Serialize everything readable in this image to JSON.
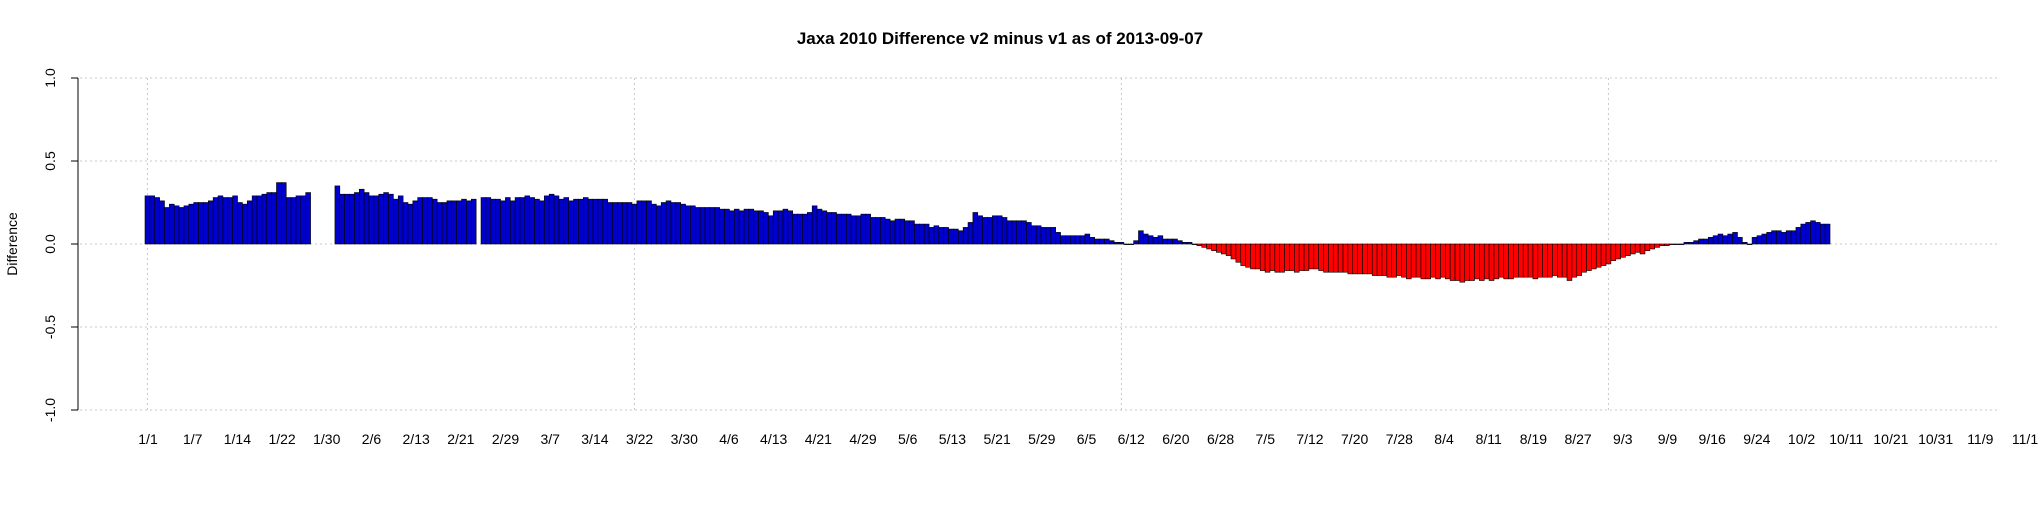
{
  "chart_data": {
    "type": "bar",
    "title": "Jaxa 2010 Difference v2 minus v1 as of 2013-09-07",
    "xlabel": "",
    "ylabel": "Difference",
    "ylim": [
      -1.0,
      1.0
    ],
    "y_ticks": [
      1.0,
      0.5,
      0.0,
      -0.5,
      -1.0
    ],
    "y_tick_labels": [
      "1.0",
      "0.5",
      "0.0",
      "-0.5",
      "-1.0"
    ],
    "x_tick_labels": [
      "1/1",
      "1/7",
      "1/14",
      "1/22",
      "1/30",
      "2/6",
      "2/13",
      "2/21",
      "2/29",
      "3/7",
      "3/14",
      "3/22",
      "3/30",
      "4/6",
      "4/13",
      "4/21",
      "4/29",
      "5/6",
      "5/13",
      "5/21",
      "5/29",
      "6/5",
      "6/12",
      "6/20",
      "6/28",
      "7/5",
      "7/12",
      "7/20",
      "7/28",
      "8/4",
      "8/11",
      "8/19",
      "8/27",
      "9/3",
      "9/9",
      "9/16",
      "9/24",
      "10/2",
      "10/11",
      "10/21",
      "10/31",
      "11/9",
      "11/1"
    ],
    "vertical_gridlines_at_days": [
      0,
      100,
      200,
      300
    ],
    "grid": true,
    "positive_color": "#0000cd",
    "negative_color": "#ff0000",
    "x_unit": "day of 2010 (0 = 1/1)",
    "missing_days": [
      34,
      35,
      36,
      37,
      38,
      68
    ],
    "day_values": [
      0.29,
      0.29,
      0.28,
      0.26,
      0.22,
      0.24,
      0.23,
      0.22,
      0.23,
      0.24,
      0.25,
      0.25,
      0.25,
      0.26,
      0.28,
      0.29,
      0.28,
      0.28,
      0.29,
      0.25,
      0.24,
      0.26,
      0.29,
      0.29,
      0.3,
      0.31,
      0.31,
      0.37,
      0.37,
      0.28,
      0.28,
      0.29,
      0.29,
      0.31,
      null,
      null,
      null,
      null,
      null,
      0.35,
      0.3,
      0.3,
      0.3,
      0.31,
      0.33,
      0.31,
      0.29,
      0.29,
      0.3,
      0.31,
      0.3,
      0.27,
      0.29,
      0.25,
      0.24,
      0.26,
      0.28,
      0.28,
      0.28,
      0.27,
      0.25,
      0.25,
      0.26,
      0.26,
      0.26,
      0.27,
      0.26,
      0.27,
      null,
      0.28,
      0.28,
      0.27,
      0.27,
      0.26,
      0.28,
      0.26,
      0.28,
      0.28,
      0.29,
      0.28,
      0.27,
      0.26,
      0.29,
      0.3,
      0.29,
      0.27,
      0.28,
      0.26,
      0.27,
      0.27,
      0.28,
      0.27,
      0.27,
      0.27,
      0.27,
      0.25,
      0.25,
      0.25,
      0.25,
      0.25,
      0.24,
      0.26,
      0.26,
      0.26,
      0.24,
      0.23,
      0.25,
      0.26,
      0.25,
      0.25,
      0.24,
      0.23,
      0.23,
      0.22,
      0.22,
      0.22,
      0.22,
      0.22,
      0.21,
      0.21,
      0.2,
      0.21,
      0.2,
      0.21,
      0.21,
      0.2,
      0.2,
      0.19,
      0.17,
      0.2,
      0.2,
      0.21,
      0.2,
      0.18,
      0.18,
      0.18,
      0.19,
      0.23,
      0.21,
      0.2,
      0.19,
      0.19,
      0.18,
      0.18,
      0.18,
      0.17,
      0.17,
      0.18,
      0.18,
      0.16,
      0.16,
      0.16,
      0.15,
      0.14,
      0.15,
      0.15,
      0.14,
      0.14,
      0.12,
      0.12,
      0.12,
      0.1,
      0.11,
      0.1,
      0.1,
      0.09,
      0.09,
      0.08,
      0.1,
      0.13,
      0.19,
      0.17,
      0.16,
      0.16,
      0.17,
      0.17,
      0.16,
      0.14,
      0.14,
      0.14,
      0.14,
      0.13,
      0.11,
      0.11,
      0.1,
      0.1,
      0.1,
      0.07,
      0.05,
      0.05,
      0.05,
      0.05,
      0.05,
      0.06,
      0.04,
      0.03,
      0.03,
      0.03,
      0.02,
      0.01,
      0.01,
      0.0,
      0.0,
      0.02,
      0.08,
      0.06,
      0.05,
      0.04,
      0.05,
      0.03,
      0.03,
      0.03,
      0.02,
      0.01,
      0.01,
      0.0,
      -0.01,
      -0.02,
      -0.03,
      -0.04,
      -0.05,
      -0.06,
      -0.07,
      -0.09,
      -0.11,
      -0.13,
      -0.14,
      -0.15,
      -0.15,
      -0.16,
      -0.17,
      -0.16,
      -0.17,
      -0.17,
      -0.16,
      -0.16,
      -0.17,
      -0.16,
      -0.16,
      -0.15,
      -0.15,
      -0.16,
      -0.17,
      -0.17,
      -0.17,
      -0.17,
      -0.17,
      -0.18,
      -0.18,
      -0.18,
      -0.18,
      -0.18,
      -0.19,
      -0.19,
      -0.19,
      -0.2,
      -0.2,
      -0.19,
      -0.2,
      -0.21,
      -0.2,
      -0.2,
      -0.21,
      -0.21,
      -0.2,
      -0.21,
      -0.2,
      -0.21,
      -0.22,
      -0.22,
      -0.23,
      -0.22,
      -0.22,
      -0.21,
      -0.22,
      -0.21,
      -0.22,
      -0.21,
      -0.2,
      -0.21,
      -0.21,
      -0.2,
      -0.2,
      -0.2,
      -0.2,
      -0.21,
      -0.2,
      -0.2,
      -0.2,
      -0.19,
      -0.2,
      -0.2,
      -0.22,
      -0.2,
      -0.19,
      -0.17,
      -0.16,
      -0.15,
      -0.14,
      -0.13,
      -0.12,
      -0.1,
      -0.09,
      -0.08,
      -0.07,
      -0.06,
      -0.05,
      -0.06,
      -0.04,
      -0.03,
      -0.02,
      -0.01,
      -0.01,
      0.0,
      0.0,
      0.0,
      0.01,
      0.01,
      0.02,
      0.03,
      0.03,
      0.04,
      0.05,
      0.06,
      0.05,
      0.06,
      0.07,
      0.04,
      0.01,
      0.0,
      0.04,
      0.05,
      0.06,
      0.07,
      0.08,
      0.08,
      0.07,
      0.08,
      0.08,
      0.1,
      0.12,
      0.13,
      0.14,
      0.13,
      0.12,
      0.12
    ]
  }
}
